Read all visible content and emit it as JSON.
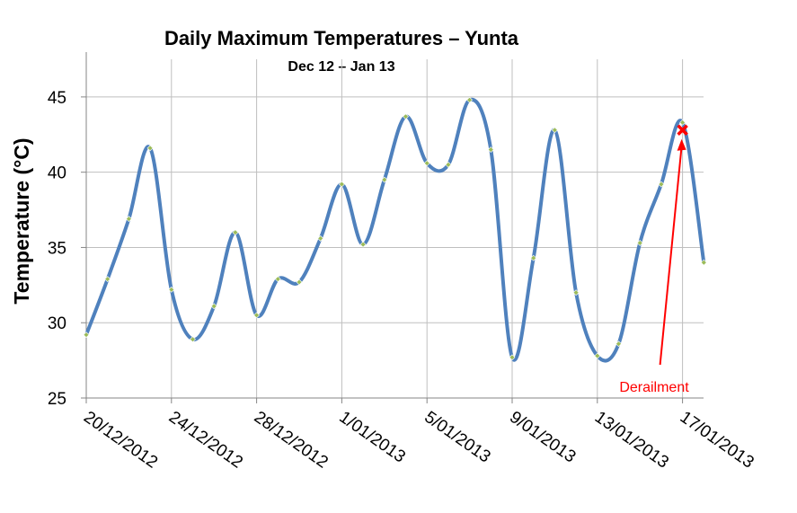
{
  "chart_data": {
    "type": "line",
    "title": "Daily Maximum Temperatures – Yunta",
    "subtitle": "Dec 12 – Jan 13",
    "xlabel": "",
    "ylabel": "Temperature (°C)",
    "ylim": [
      25,
      47.5
    ],
    "y_ticks": [
      "25",
      "30",
      "35",
      "40",
      "45"
    ],
    "x_tick_labels": [
      "20/12/2012",
      "24/12/2012",
      "28/12/2012",
      "1/01/2013",
      "5/01/2013",
      "9/01/2013",
      "13/01/2013",
      "17/01/2013"
    ],
    "grid": true,
    "x": [
      "20/12/2012",
      "21/12/2012",
      "22/12/2012",
      "23/12/2012",
      "24/12/2012",
      "25/12/2012",
      "26/12/2012",
      "27/12/2012",
      "28/12/2012",
      "29/12/2012",
      "30/12/2012",
      "31/12/2012",
      "1/01/2013",
      "2/01/2013",
      "3/01/2013",
      "4/01/2013",
      "5/01/2013",
      "6/01/2013",
      "7/01/2013",
      "8/01/2013",
      "9/01/2013",
      "10/01/2013",
      "11/01/2013",
      "12/01/2013",
      "13/01/2013",
      "14/01/2013",
      "15/01/2013",
      "16/01/2013",
      "17/01/2013",
      "18/01/2013"
    ],
    "series": [
      {
        "values": [
          29.2,
          32.9,
          36.9,
          41.6,
          32.2,
          28.9,
          31.1,
          36.0,
          30.5,
          32.9,
          32.7,
          35.6,
          39.2,
          35.2,
          39.5,
          43.7,
          40.6,
          40.5,
          44.8,
          41.5,
          27.7,
          34.3,
          42.8,
          32.0,
          27.8,
          28.6,
          35.3,
          39.2,
          43.3,
          34.0
        ]
      }
    ],
    "annotation": {
      "text": "Derailment",
      "x": "17/01/2013",
      "y": 42.8
    },
    "colors": {
      "line": "#4f81bd",
      "marker": "#9bbb59",
      "annotation": "#ff0000",
      "grid": "#bfbfbf"
    }
  }
}
